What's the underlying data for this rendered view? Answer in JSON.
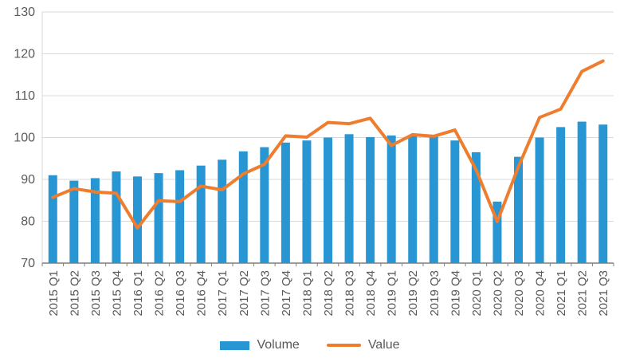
{
  "chart_data": {
    "type": "combo-bar-line",
    "title": "",
    "xlabel": "",
    "ylabel": "",
    "ylim": [
      70,
      130
    ],
    "yticks": [
      70,
      80,
      90,
      100,
      110,
      120,
      130
    ],
    "grid": "horizontal",
    "legend_position": "bottom",
    "categories": [
      "2015 Q1",
      "2015 Q2",
      "2015 Q3",
      "2015 Q4",
      "2016 Q1",
      "2016 Q2",
      "2016 Q3",
      "2016 Q4",
      "2017 Q1",
      "2017 Q2",
      "2017 Q3",
      "2017 Q4",
      "2018 Q1",
      "2018 Q2",
      "2018 Q3",
      "2018 Q4",
      "2019 Q1",
      "2019 Q2",
      "2019 Q3",
      "2019 Q4",
      "2020 Q1",
      "2020 Q2",
      "2020 Q3",
      "2020 Q4",
      "2021 Q1",
      "2021 Q2",
      "2021 Q3"
    ],
    "series": [
      {
        "name": "Volume",
        "type": "bar",
        "color": "#2896D3",
        "values": [
          91.0,
          89.7,
          90.3,
          91.9,
          90.7,
          91.5,
          92.2,
          93.3,
          94.7,
          96.7,
          97.7,
          98.8,
          99.3,
          100.0,
          100.8,
          100.1,
          100.5,
          100.5,
          100.3,
          99.3,
          96.5,
          84.7,
          95.4,
          100.0,
          102.5,
          103.8,
          103.1
        ]
      },
      {
        "name": "Value",
        "type": "line",
        "color": "#EE7D2F",
        "values": [
          85.7,
          87.8,
          87.0,
          86.7,
          78.4,
          84.9,
          84.7,
          88.4,
          87.5,
          91.3,
          93.6,
          100.4,
          100.1,
          103.6,
          103.3,
          104.6,
          98.1,
          100.7,
          100.3,
          101.8,
          92.3,
          79.9,
          93.0,
          104.8,
          106.8,
          115.8,
          118.3
        ]
      }
    ]
  },
  "colors": {
    "gridline": "#d9d9d9",
    "axis": "#7f7f7f",
    "tick_text": "#595959"
  }
}
